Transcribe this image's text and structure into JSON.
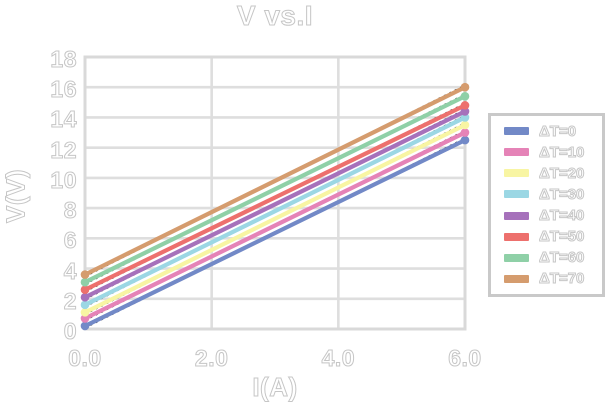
{
  "title": "V vs.I",
  "axes": {
    "x_label": "I(A)",
    "y_label": "V(V)",
    "x_tick_labels": [
      "0.0",
      "2.0",
      "4.0",
      "6.0"
    ],
    "y_tick_labels": [
      "0",
      "2",
      "4",
      "6",
      "8",
      "10",
      "12",
      "14",
      "16",
      "18"
    ]
  },
  "legend_items": [
    {
      "label": "ΔT=0",
      "color": "#7289c7"
    },
    {
      "label": "ΔT=10",
      "color": "#e583b7"
    },
    {
      "label": "ΔT=20",
      "color": "#f8f5a3"
    },
    {
      "label": "ΔT=30",
      "color": "#9bd7e4"
    },
    {
      "label": "ΔT=40",
      "color": "#a671bb"
    },
    {
      "label": "ΔT=50",
      "color": "#ed706d"
    },
    {
      "label": "ΔT=60",
      "color": "#8fd0a7"
    },
    {
      "label": "ΔT=70",
      "color": "#d59c6e"
    }
  ],
  "style_colors": {
    "gridline": "#dedede",
    "plot_frame": "#d9d9d9",
    "fit_line": "#1f1f1f",
    "text_outline": "#c6c6c6",
    "legend_border": "#c9c9c9"
  },
  "chart_data": {
    "type": "line",
    "title": "V vs.I",
    "xlabel": "I(A)",
    "ylabel": "V(V)",
    "xlim": [
      0,
      6
    ],
    "ylim": [
      0,
      18
    ],
    "x_tick_values": [
      0,
      2,
      4,
      6
    ],
    "y_tick_values": [
      0,
      2,
      4,
      6,
      8,
      10,
      12,
      14,
      16,
      18
    ],
    "grid": true,
    "legend_position": "outside-right",
    "x": [
      0,
      6
    ],
    "series": [
      {
        "name": "ΔT=0",
        "color": "#7289c7",
        "values": [
          0.2,
          12.5
        ]
      },
      {
        "name": "ΔT=10",
        "color": "#e583b7",
        "values": [
          0.7,
          13.0
        ]
      },
      {
        "name": "ΔT=20",
        "color": "#f8f5a3",
        "values": [
          1.1,
          13.5
        ]
      },
      {
        "name": "ΔT=30",
        "color": "#9bd7e4",
        "values": [
          1.6,
          14.0
        ]
      },
      {
        "name": "ΔT=40",
        "color": "#a671bb",
        "values": [
          2.1,
          14.4
        ]
      },
      {
        "name": "ΔT=50",
        "color": "#ed706d",
        "values": [
          2.6,
          14.8
        ]
      },
      {
        "name": "ΔT=60",
        "color": "#8fd0a7",
        "values": [
          3.1,
          15.4
        ]
      },
      {
        "name": "ΔT=70",
        "color": "#d59c6e",
        "values": [
          3.6,
          16.0
        ]
      }
    ],
    "black_dotted_fit_lines": true,
    "endpoint_markers": true
  }
}
